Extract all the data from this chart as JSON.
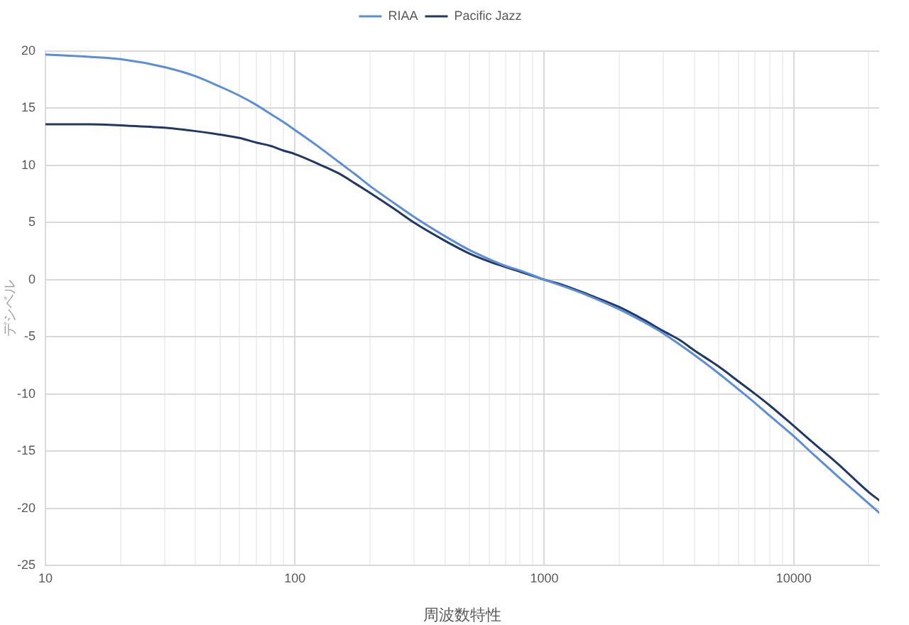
{
  "chart_data": {
    "type": "line",
    "xlabel": "周波数特性",
    "ylabel": "デシベル",
    "log": "x",
    "grid": true,
    "legend": "top",
    "marker": "none",
    "line_style": "solid",
    "xlim": [
      10,
      22000
    ],
    "xticks": [
      10,
      {
        "value": 20,
        "label": null
      },
      {
        "value": 30,
        "label": null
      },
      {
        "value": 40,
        "label": null
      },
      {
        "value": 50,
        "label": null
      },
      {
        "value": 60,
        "label": null
      },
      {
        "value": 70,
        "label": null
      },
      {
        "value": 80,
        "label": null
      },
      {
        "value": 90,
        "label": null
      },
      100,
      {
        "value": 200,
        "label": null
      },
      {
        "value": 300,
        "label": null
      },
      {
        "value": 400,
        "label": null
      },
      {
        "value": 500,
        "label": null
      },
      {
        "value": 600,
        "label": null
      },
      {
        "value": 700,
        "label": null
      },
      {
        "value": 800,
        "label": null
      },
      {
        "value": 900,
        "label": null
      },
      1000,
      {
        "value": 2000,
        "label": null
      },
      {
        "value": 3000,
        "label": null
      },
      {
        "value": 4000,
        "label": null
      },
      {
        "value": 5000,
        "label": null
      },
      {
        "value": 6000,
        "label": null
      },
      {
        "value": 7000,
        "label": null
      },
      {
        "value": 8000,
        "label": null
      },
      {
        "value": 9000,
        "label": null
      },
      10000,
      {
        "value": 20000,
        "label": null
      }
    ],
    "ylim": [
      -25,
      20
    ],
    "yticks": [
      -25,
      -20,
      -15,
      -10,
      -5,
      0,
      5,
      10,
      15,
      20
    ],
    "x": [
      10,
      15,
      20,
      30,
      40,
      50,
      60,
      70,
      80,
      90,
      100,
      125,
      150,
      175,
      200,
      250,
      300,
      400,
      500,
      600,
      700,
      800,
      1000,
      1200,
      1500,
      2000,
      2500,
      3000,
      3500,
      4000,
      5000,
      6000,
      7000,
      8000,
      10000,
      12000,
      15000,
      20000,
      22000
    ],
    "series": [
      {
        "name": "RIAA",
        "color": "#5b8ed6",
        "values": [
          19.7,
          19.5,
          19.3,
          18.6,
          17.8,
          16.9,
          16.1,
          15.3,
          14.5,
          13.8,
          13.1,
          11.6,
          10.3,
          9.2,
          8.2,
          6.7,
          5.5,
          3.8,
          2.6,
          1.8,
          1.2,
          0.8,
          0,
          -0.6,
          -1.4,
          -2.6,
          -3.7,
          -4.7,
          -5.7,
          -6.6,
          -8.2,
          -9.6,
          -10.8,
          -11.9,
          -13.7,
          -15.3,
          -17.2,
          -19.6,
          -20.4
        ]
      },
      {
        "name": "Pacific Jazz",
        "color": "#203864",
        "values": [
          13.6,
          13.6,
          13.5,
          13.3,
          13.0,
          12.7,
          12.4,
          12.0,
          11.7,
          11.3,
          11.0,
          10.1,
          9.3,
          8.4,
          7.6,
          6.2,
          5.0,
          3.4,
          2.3,
          1.6,
          1.1,
          0.7,
          0,
          -0.5,
          -1.3,
          -2.4,
          -3.5,
          -4.5,
          -5.3,
          -6.2,
          -7.6,
          -8.9,
          -10.0,
          -11.0,
          -12.8,
          -14.3,
          -16.1,
          -18.6,
          -19.3
        ]
      }
    ]
  }
}
